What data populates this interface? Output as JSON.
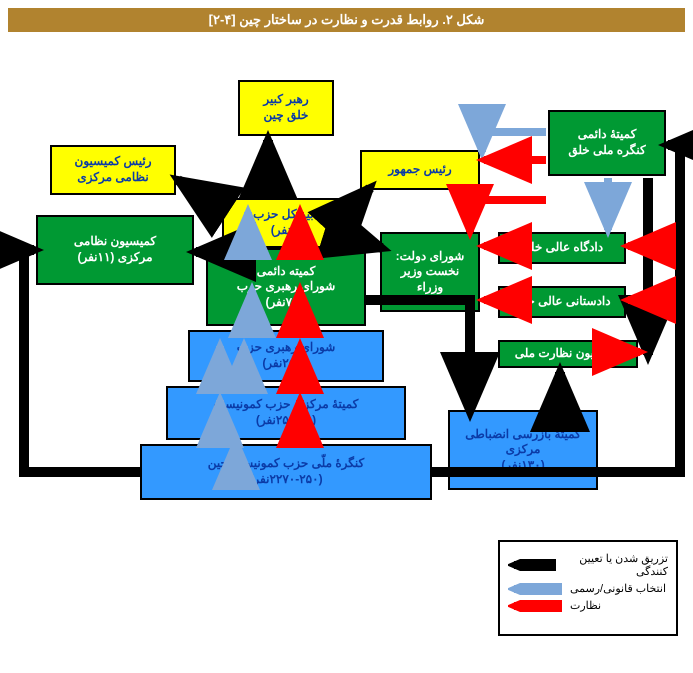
{
  "title": "شکل ۲. روابط قدرت و نظارت در ساختار چین [۴-۲]",
  "title_bg": "#b1832f",
  "title_color": "#ffffff",
  "colors": {
    "yellow": "#ffff00",
    "green": "#009933",
    "blue": "#3399ff",
    "black": "#000000",
    "border": "#000000",
    "legend_border": "#000000",
    "arrow_black": "#000000",
    "arrow_blue": "#7da7d9",
    "arrow_red": "#ff0000"
  },
  "boxes": {
    "leader": "رهبر کبیر\nخلق چین",
    "mil_chair": "رئیس کمیسیون\nنظامی مرکزی",
    "president": "رئیس جمهور",
    "npc_standing": "کمیتهٔ دائمی\nکنگره ملی خلق",
    "gensec": "دبیر کل حزب\n(۱نفر)",
    "cmc": "کمیسیون نظامی\nمرکزی (۱۱نفر)",
    "state_council": "شورای دولت:\nنخست وزیر\nوزراء",
    "supreme_court": "دادگاه عالی خلق",
    "procuratorate": "دادستانی عالی خلق",
    "nsc": "کمیسیون نظارت ملی",
    "psc": "کمیته دائمی\nشورای رهبری حزب\n(۷-۱نفر)",
    "politburo": "شورای رهبری حزب\n(۲۵-۷نفر)",
    "central_cmte": "کمیتهٔ مرکزی حزب کمونیست\n(۲۵۰-۲۵نفر)",
    "congress": "کنگرهٔ ملّی حزب کمونیست چین\n(۲۲۷۰-۲۵۰نفر)",
    "ccdi": "کمیتهٔ بازرسی انضباطی\nمرکزی\n(۱۳۰نفر)"
  },
  "legend": {
    "appoint": "تزریق شدن یا تعیین کنندگی",
    "elect": "انتخاب قانونی/رسمی",
    "oversee": "نظارت"
  }
}
